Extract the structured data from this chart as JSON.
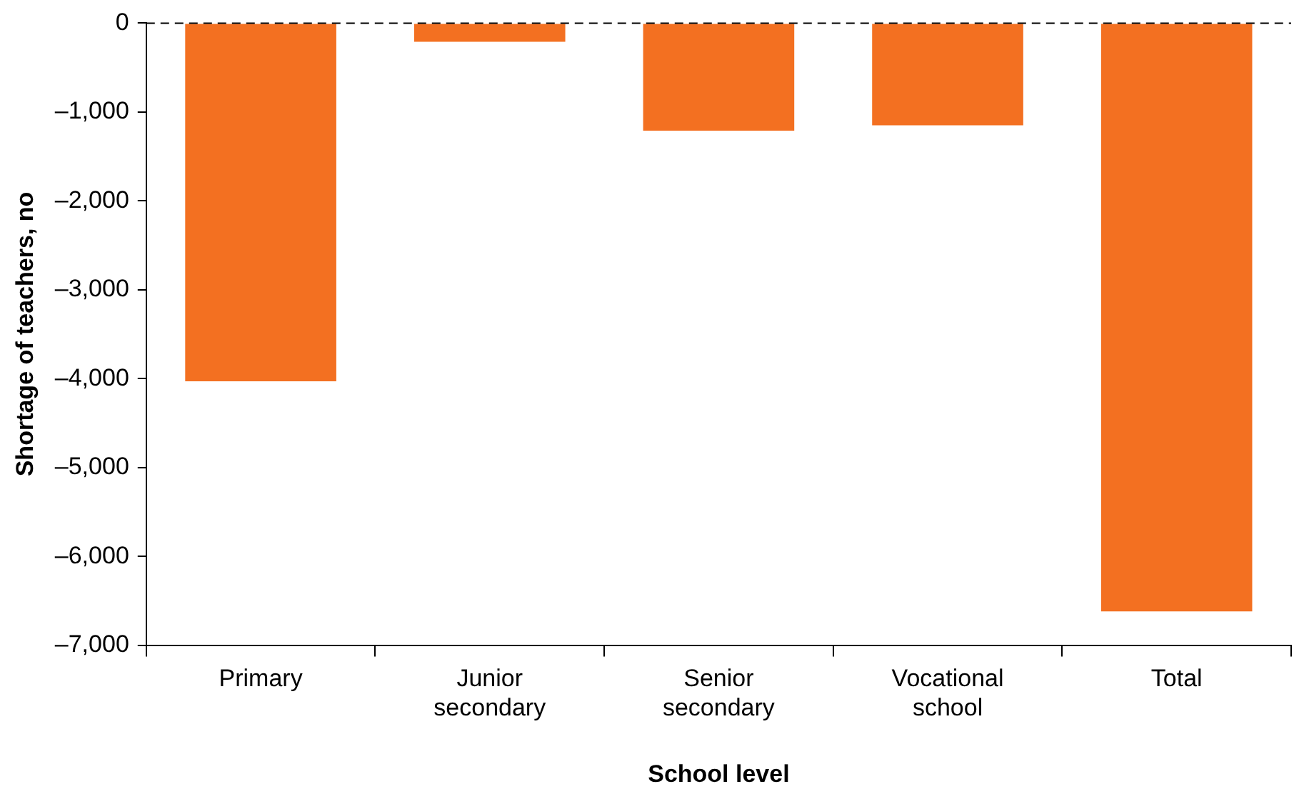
{
  "chart_data": {
    "type": "bar",
    "xlabel": "School level",
    "ylabel": "Shortage of teachers, no",
    "categories": [
      "Primary",
      "Junior secondary",
      "Senior secondary",
      "Vocational school",
      "Total"
    ],
    "values": [
      -4030,
      -210,
      -1210,
      -1150,
      -6620
    ],
    "color": "#f37021",
    "ylim": [
      -7000,
      0
    ],
    "yticks": [
      {
        "value": -7000,
        "label": "–7,000"
      },
      {
        "value": -6000,
        "label": "–6,000"
      },
      {
        "value": -5000,
        "label": "–5,000"
      },
      {
        "value": -4000,
        "label": "–4,000"
      },
      {
        "value": -3000,
        "label": "–3,000"
      },
      {
        "value": -2000,
        "label": "–2,000"
      },
      {
        "value": -1000,
        "label": "–1,000"
      },
      0
    ],
    "ref_lines": [
      {
        "axis": "y",
        "value": 0,
        "line_style": "dashed",
        "color": "#000000"
      }
    ],
    "grid": false,
    "legend": false
  }
}
